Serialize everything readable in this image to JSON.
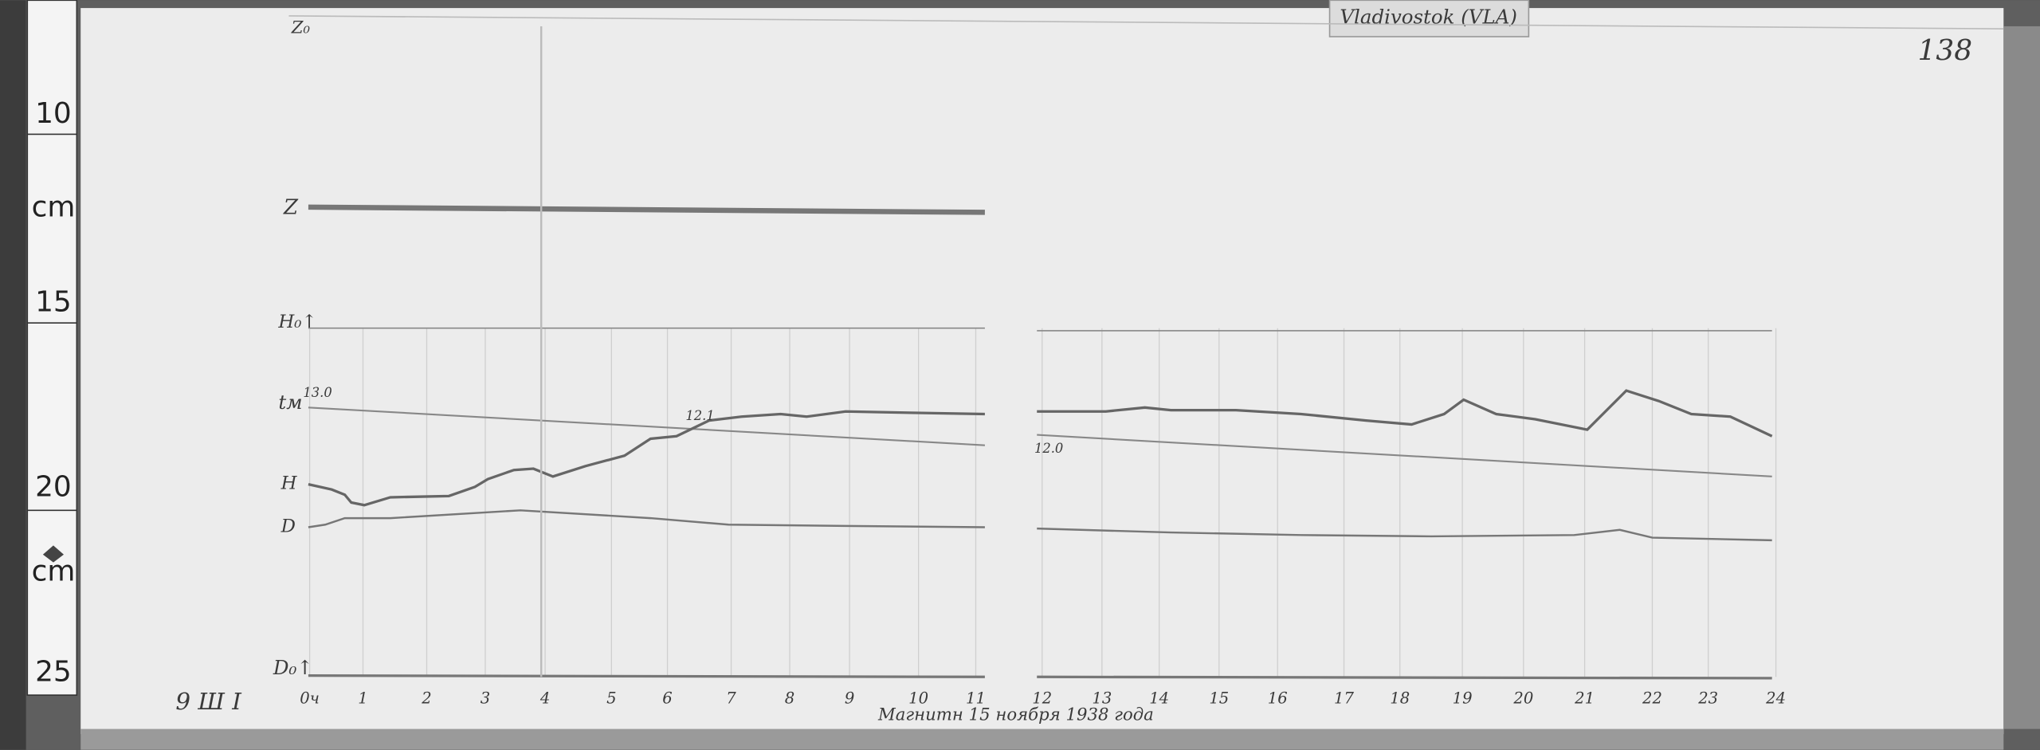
{
  "header": {
    "station": "Vladivostok (VLA)",
    "sheet_number": "138"
  },
  "ruler": {
    "labels": [
      "10",
      "cm",
      "15",
      "20",
      "cm",
      "25"
    ]
  },
  "trace_labels": {
    "z": "Z",
    "z_base": "Z₀",
    "h_base": "H₀↑",
    "temperature": "tм",
    "h": "H",
    "d": "D",
    "d_base": "D₀↑"
  },
  "temperature_marks": [
    "13.0",
    "12.1",
    "12.0"
  ],
  "hours": [
    "0ч",
    "1",
    "2",
    "3",
    "4",
    "5",
    "6",
    "7",
    "8",
    "9",
    "10",
    "11",
    "12",
    "13",
    "14",
    "15",
    "16",
    "17",
    "18",
    "19",
    "20",
    "21",
    "22",
    "23",
    "24"
  ],
  "footer": {
    "code": "9 Ш I",
    "caption": "Магнитн  15 ноября  1938 года"
  }
}
